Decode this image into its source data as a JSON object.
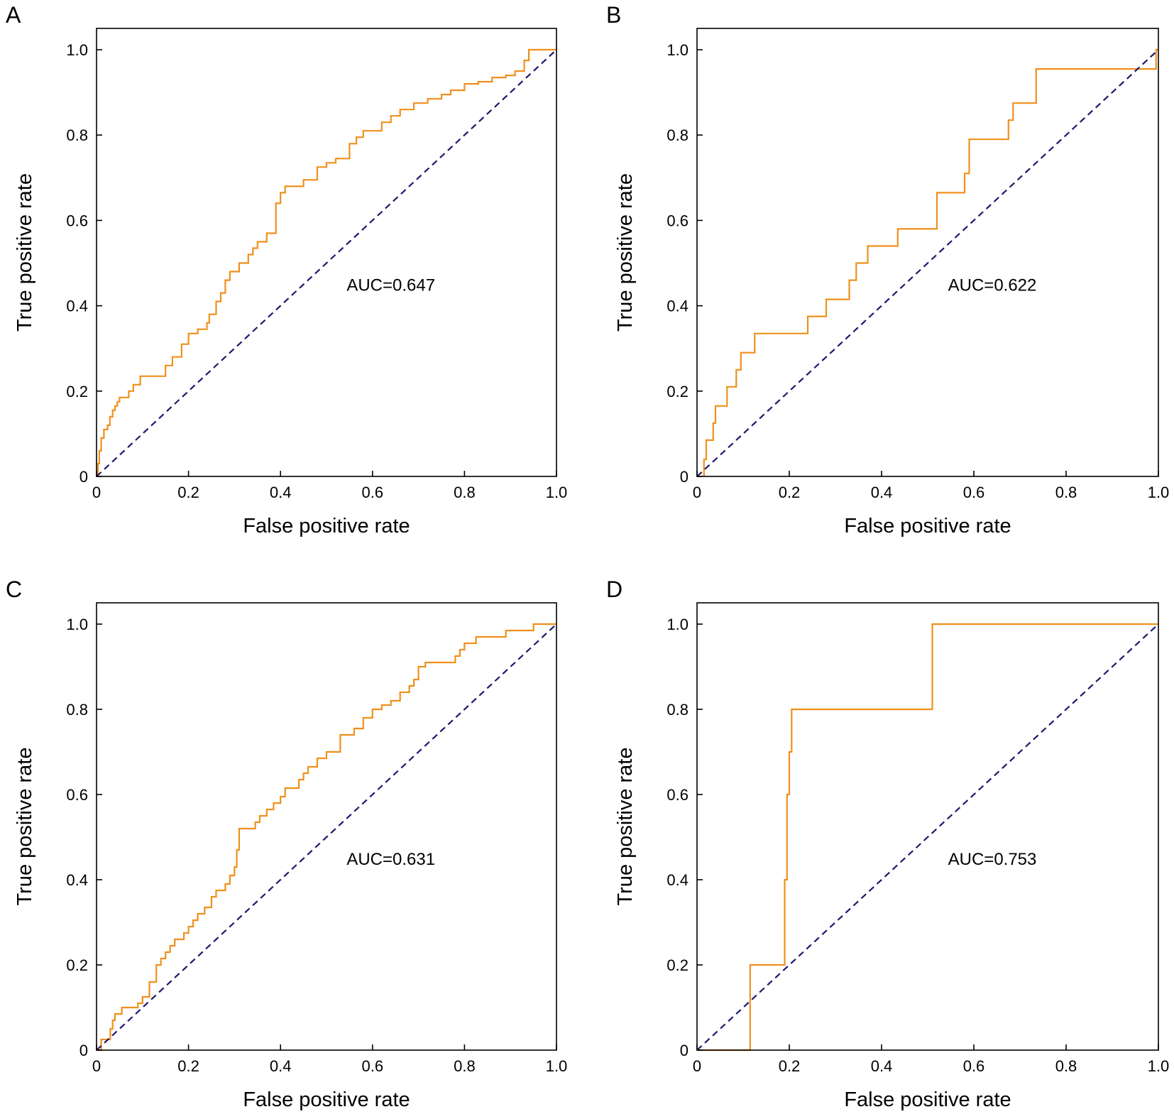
{
  "colors": {
    "roc": "#f0901c",
    "diagonal": "#1a1a6e",
    "axes": "#000000"
  },
  "chart_data": [
    {
      "type": "line",
      "panel": "A",
      "xlabel": "False positive rate",
      "ylabel": "True positive rate",
      "xlim": [
        0,
        1
      ],
      "ylim": [
        0,
        1.05
      ],
      "x_ticks": [
        "0",
        "0.2",
        "0.4",
        "0.6",
        "0.8",
        "1.0"
      ],
      "y_ticks": [
        "0",
        "0.2",
        "0.4",
        "0.6",
        "0.8",
        "1.0"
      ],
      "annotation": "AUC=0.647",
      "grid": false,
      "series": [
        {
          "style": "roc-step",
          "x": [
            0,
            0.003,
            0.003,
            0.006,
            0.006,
            0.01,
            0.01,
            0.016,
            0.016,
            0.024,
            0.024,
            0.029,
            0.029,
            0.035,
            0.035,
            0.04,
            0.04,
            0.045,
            0.045,
            0.05,
            0.05,
            0.07,
            0.07,
            0.08,
            0.08,
            0.095,
            0.095,
            0.15,
            0.15,
            0.165,
            0.165,
            0.185,
            0.185,
            0.2,
            0.2,
            0.22,
            0.22,
            0.24,
            0.24,
            0.245,
            0.245,
            0.26,
            0.26,
            0.27,
            0.27,
            0.28,
            0.28,
            0.29,
            0.29,
            0.31,
            0.31,
            0.33,
            0.33,
            0.34,
            0.34,
            0.35,
            0.35,
            0.37,
            0.37,
            0.39,
            0.39,
            0.4,
            0.4,
            0.41,
            0.41,
            0.45,
            0.45,
            0.48,
            0.48,
            0.5,
            0.5,
            0.52,
            0.52,
            0.55,
            0.55,
            0.565,
            0.565,
            0.58,
            0.58,
            0.62,
            0.62,
            0.64,
            0.64,
            0.66,
            0.66,
            0.69,
            0.69,
            0.72,
            0.72,
            0.75,
            0.75,
            0.77,
            0.77,
            0.8,
            0.8,
            0.83,
            0.83,
            0.86,
            0.86,
            0.89,
            0.89,
            0.91,
            0.91,
            0.93,
            0.93,
            0.94,
            0.94,
            1.0
          ],
          "y": [
            0,
            0,
            0.03,
            0.03,
            0.06,
            0.06,
            0.09,
            0.09,
            0.11,
            0.11,
            0.12,
            0.12,
            0.14,
            0.14,
            0.155,
            0.155,
            0.165,
            0.165,
            0.175,
            0.175,
            0.185,
            0.185,
            0.2,
            0.2,
            0.215,
            0.215,
            0.235,
            0.235,
            0.26,
            0.26,
            0.28,
            0.28,
            0.31,
            0.31,
            0.335,
            0.335,
            0.345,
            0.345,
            0.36,
            0.36,
            0.38,
            0.38,
            0.41,
            0.41,
            0.43,
            0.43,
            0.46,
            0.46,
            0.48,
            0.48,
            0.5,
            0.5,
            0.52,
            0.52,
            0.535,
            0.535,
            0.55,
            0.55,
            0.57,
            0.57,
            0.64,
            0.64,
            0.665,
            0.665,
            0.68,
            0.68,
            0.695,
            0.695,
            0.725,
            0.725,
            0.735,
            0.735,
            0.745,
            0.745,
            0.78,
            0.78,
            0.795,
            0.795,
            0.81,
            0.81,
            0.83,
            0.83,
            0.845,
            0.845,
            0.86,
            0.86,
            0.875,
            0.875,
            0.885,
            0.885,
            0.895,
            0.895,
            0.905,
            0.905,
            0.92,
            0.92,
            0.925,
            0.925,
            0.935,
            0.935,
            0.94,
            0.94,
            0.95,
            0.95,
            0.975,
            0.975,
            1.0,
            1.0
          ]
        },
        {
          "style": "diagonal",
          "x": [
            0,
            1
          ],
          "y": [
            0,
            1
          ]
        }
      ]
    },
    {
      "type": "line",
      "panel": "B",
      "xlabel": "False positive rate",
      "ylabel": "True positive rate",
      "xlim": [
        0,
        1
      ],
      "ylim": [
        0,
        1.05
      ],
      "x_ticks": [
        "0",
        "0.2",
        "0.4",
        "0.6",
        "0.8",
        "1.0"
      ],
      "y_ticks": [
        "0",
        "0.2",
        "0.4",
        "0.6",
        "0.8",
        "1.0"
      ],
      "annotation": "AUC=0.622",
      "grid": false,
      "series": [
        {
          "style": "roc-step",
          "x": [
            0.015,
            0.015,
            0.02,
            0.02,
            0.035,
            0.035,
            0.04,
            0.04,
            0.065,
            0.065,
            0.085,
            0.085,
            0.095,
            0.095,
            0.125,
            0.125,
            0.24,
            0.24,
            0.28,
            0.28,
            0.33,
            0.33,
            0.345,
            0.345,
            0.37,
            0.37,
            0.435,
            0.435,
            0.52,
            0.52,
            0.58,
            0.58,
            0.59,
            0.59,
            0.675,
            0.675,
            0.685,
            0.685,
            0.735,
            0.735,
            0.995,
            0.995,
            1.0
          ],
          "y": [
            0,
            0.04,
            0.04,
            0.085,
            0.085,
            0.125,
            0.125,
            0.165,
            0.165,
            0.21,
            0.21,
            0.25,
            0.25,
            0.29,
            0.29,
            0.335,
            0.335,
            0.375,
            0.375,
            0.415,
            0.415,
            0.46,
            0.46,
            0.5,
            0.5,
            0.54,
            0.54,
            0.58,
            0.58,
            0.665,
            0.665,
            0.71,
            0.71,
            0.79,
            0.79,
            0.835,
            0.835,
            0.875,
            0.875,
            0.955,
            0.955,
            1.0,
            1.0
          ]
        },
        {
          "style": "diagonal",
          "x": [
            0,
            1
          ],
          "y": [
            0,
            1
          ]
        }
      ]
    },
    {
      "type": "line",
      "panel": "C",
      "xlabel": "False positive rate",
      "ylabel": "True positive rate",
      "xlim": [
        0,
        1
      ],
      "ylim": [
        0,
        1.05
      ],
      "x_ticks": [
        "0",
        "0.2",
        "0.4",
        "0.6",
        "0.8",
        "1.0"
      ],
      "y_ticks": [
        "0",
        "0.2",
        "0.4",
        "0.6",
        "0.8",
        "1.0"
      ],
      "annotation": "AUC=0.631",
      "grid": false,
      "series": [
        {
          "style": "roc-step",
          "x": [
            0,
            0.01,
            0.01,
            0.03,
            0.03,
            0.035,
            0.035,
            0.04,
            0.04,
            0.055,
            0.055,
            0.09,
            0.09,
            0.1,
            0.1,
            0.115,
            0.115,
            0.13,
            0.13,
            0.14,
            0.14,
            0.15,
            0.15,
            0.16,
            0.16,
            0.17,
            0.17,
            0.19,
            0.19,
            0.2,
            0.2,
            0.21,
            0.21,
            0.22,
            0.22,
            0.235,
            0.235,
            0.25,
            0.25,
            0.26,
            0.26,
            0.28,
            0.28,
            0.29,
            0.29,
            0.3,
            0.3,
            0.305,
            0.305,
            0.31,
            0.31,
            0.345,
            0.345,
            0.355,
            0.355,
            0.37,
            0.37,
            0.385,
            0.385,
            0.4,
            0.4,
            0.41,
            0.41,
            0.44,
            0.44,
            0.45,
            0.45,
            0.46,
            0.46,
            0.48,
            0.48,
            0.5,
            0.5,
            0.53,
            0.53,
            0.56,
            0.56,
            0.58,
            0.58,
            0.6,
            0.6,
            0.62,
            0.62,
            0.64,
            0.64,
            0.66,
            0.66,
            0.68,
            0.68,
            0.69,
            0.69,
            0.7,
            0.7,
            0.715,
            0.715,
            0.78,
            0.78,
            0.79,
            0.79,
            0.8,
            0.8,
            0.825,
            0.825,
            0.89,
            0.89,
            0.95,
            0.95,
            1.0
          ],
          "y": [
            0,
            0,
            0.025,
            0.025,
            0.05,
            0.05,
            0.07,
            0.07,
            0.085,
            0.085,
            0.1,
            0.1,
            0.11,
            0.11,
            0.125,
            0.125,
            0.16,
            0.16,
            0.2,
            0.2,
            0.215,
            0.215,
            0.23,
            0.23,
            0.245,
            0.245,
            0.26,
            0.26,
            0.275,
            0.275,
            0.29,
            0.29,
            0.305,
            0.305,
            0.32,
            0.32,
            0.335,
            0.335,
            0.36,
            0.36,
            0.375,
            0.375,
            0.39,
            0.39,
            0.41,
            0.41,
            0.43,
            0.43,
            0.47,
            0.47,
            0.52,
            0.52,
            0.535,
            0.535,
            0.55,
            0.55,
            0.565,
            0.565,
            0.58,
            0.58,
            0.595,
            0.595,
            0.615,
            0.615,
            0.635,
            0.635,
            0.65,
            0.65,
            0.665,
            0.665,
            0.685,
            0.685,
            0.7,
            0.7,
            0.74,
            0.74,
            0.755,
            0.755,
            0.78,
            0.78,
            0.8,
            0.8,
            0.81,
            0.81,
            0.82,
            0.82,
            0.84,
            0.84,
            0.855,
            0.855,
            0.87,
            0.87,
            0.9,
            0.9,
            0.91,
            0.91,
            0.925,
            0.925,
            0.94,
            0.94,
            0.955,
            0.955,
            0.97,
            0.97,
            0.985,
            0.985,
            1.0,
            1.0
          ]
        },
        {
          "style": "diagonal",
          "x": [
            0,
            1
          ],
          "y": [
            0,
            1
          ]
        }
      ]
    },
    {
      "type": "line",
      "panel": "D",
      "xlabel": "False positive rate",
      "ylabel": "True positive rate",
      "xlim": [
        0,
        1
      ],
      "ylim": [
        0,
        1.05
      ],
      "x_ticks": [
        "0",
        "0.2",
        "0.4",
        "0.6",
        "0.8",
        "1.0"
      ],
      "y_ticks": [
        "0",
        "0.2",
        "0.4",
        "0.6",
        "0.8",
        "1.0"
      ],
      "annotation": "AUC=0.753",
      "grid": false,
      "series": [
        {
          "style": "roc-step",
          "x": [
            0,
            0.115,
            0.115,
            0.19,
            0.19,
            0.195,
            0.195,
            0.2,
            0.2,
            0.205,
            0.205,
            0.215,
            0.215,
            0.51,
            0.51,
            1.0
          ],
          "y": [
            0,
            0,
            0.2,
            0.2,
            0.4,
            0.4,
            0.6,
            0.6,
            0.7,
            0.7,
            0.8,
            0.8,
            0.8,
            0.8,
            1.0,
            1.0
          ]
        },
        {
          "style": "diagonal",
          "x": [
            0,
            1
          ],
          "y": [
            0,
            1
          ]
        }
      ]
    }
  ]
}
